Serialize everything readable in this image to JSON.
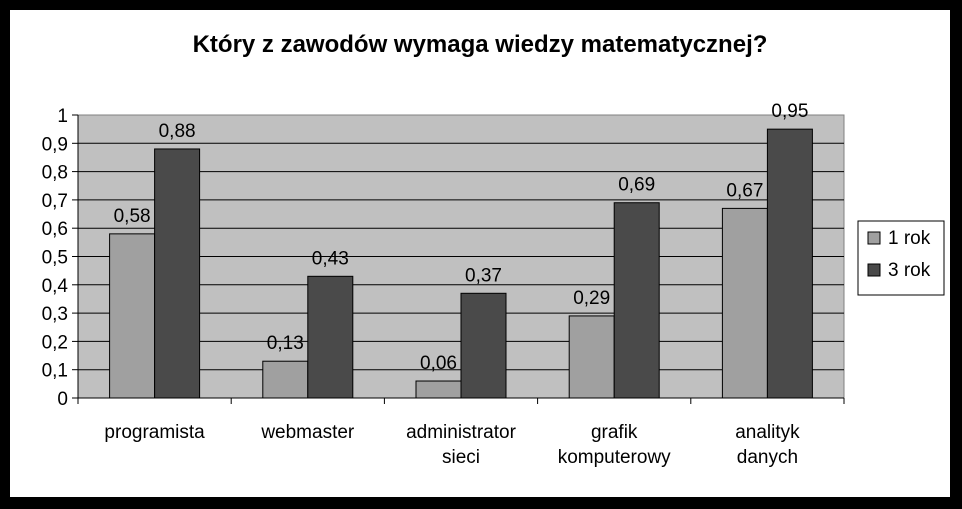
{
  "chart_data": {
    "type": "bar",
    "title": "Który z zawodów wymaga wiedzy matematycznej?",
    "categories": [
      [
        "programista"
      ],
      [
        "webmaster"
      ],
      [
        "administrator",
        "sieci"
      ],
      [
        "grafik",
        "komputerowy"
      ],
      [
        "analityk",
        "danych"
      ]
    ],
    "series": [
      {
        "name": "1 rok",
        "values": [
          0.58,
          0.13,
          0.06,
          0.29,
          0.67
        ],
        "labels": [
          "0,58",
          "0,13",
          "0,06",
          "0,29",
          "0,67"
        ],
        "color": "#a0a0a0"
      },
      {
        "name": "3 rok",
        "values": [
          0.88,
          0.43,
          0.37,
          0.69,
          0.95
        ],
        "labels": [
          "0,88",
          "0,43",
          "0,37",
          "0,69",
          "0,95"
        ],
        "color": "#4a4a4a"
      }
    ],
    "yticks": [
      "0",
      "0,1",
      "0,2",
      "0,3",
      "0,4",
      "0,5",
      "0,6",
      "0,7",
      "0,8",
      "0,9",
      "1"
    ],
    "ylim": [
      0,
      1
    ],
    "xlabel": "",
    "ylabel": "",
    "grid": true,
    "legend_position": "right",
    "plot_background": "#c0c0c0"
  }
}
